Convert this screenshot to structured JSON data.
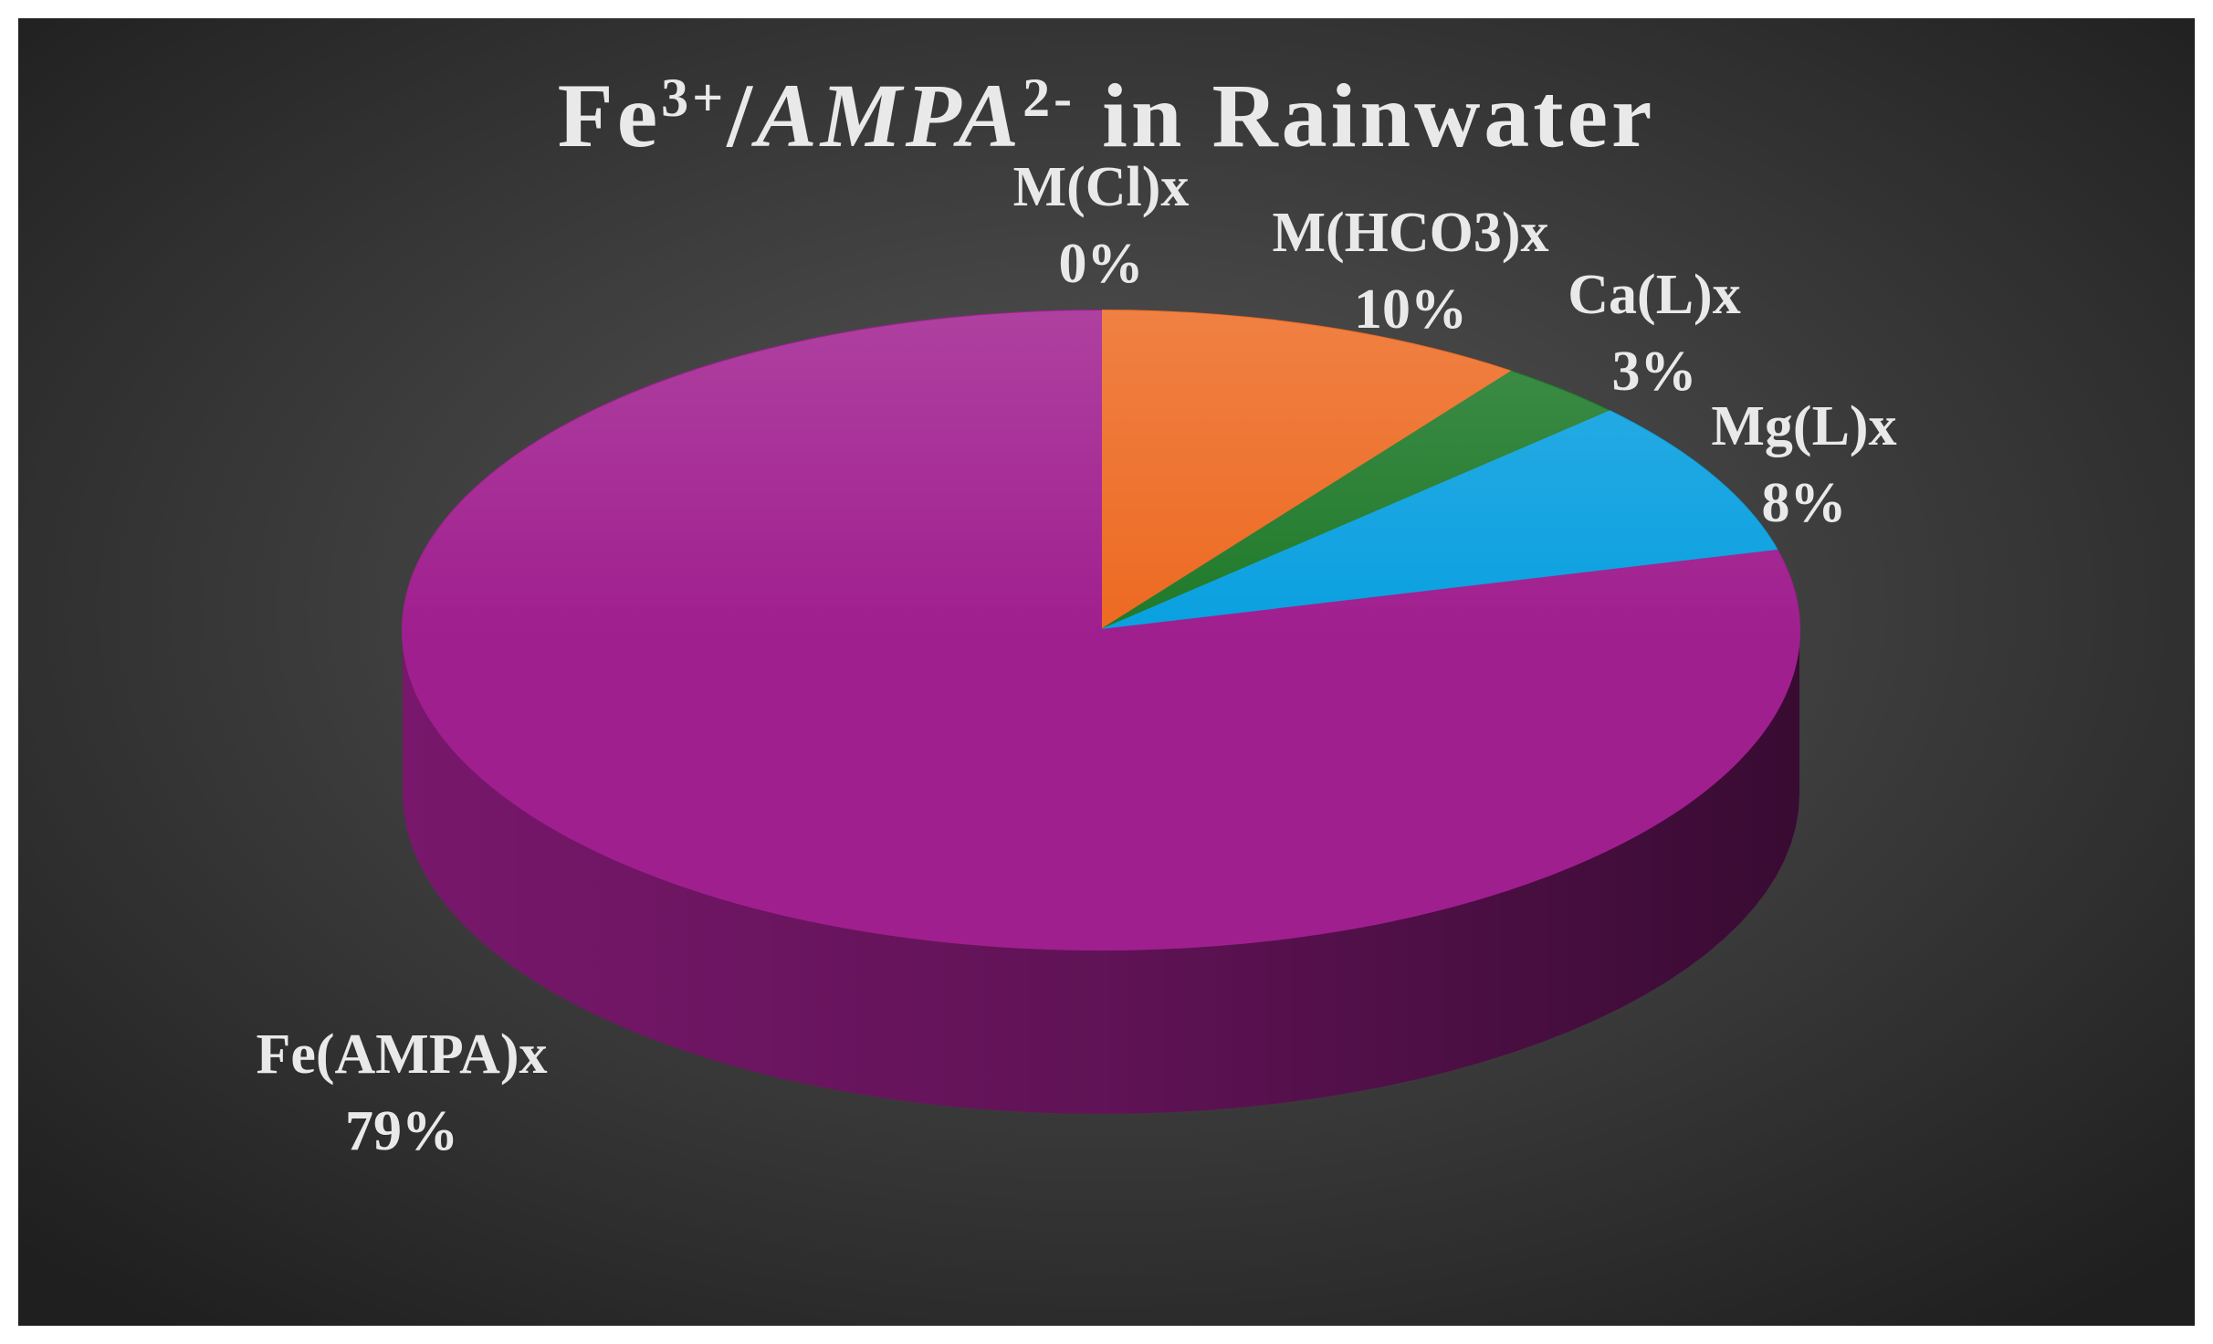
{
  "chart_data": {
    "type": "pie3d",
    "title": [
      {
        "text": "Fe"
      },
      {
        "text": "3+",
        "sup": true
      },
      {
        "text": "/"
      },
      {
        "text": "AMPA",
        "italic": true
      },
      {
        "text": "2-",
        "sup": true
      },
      {
        "text": " in Rainwater"
      }
    ],
    "categories": [
      "M(Cl)x",
      "M(HCO3)x",
      "Ca(L)x",
      "Mg(L)x",
      "Fe(AMPA)x"
    ],
    "values": [
      0,
      10,
      3,
      8,
      79
    ],
    "value_labels": [
      "0%",
      "10%",
      "3%",
      "8%",
      "79%"
    ],
    "colors": [
      "#2f5597",
      "#ed6a22",
      "#1f7a2a",
      "#0aa0e0",
      "#a01f8f"
    ]
  }
}
